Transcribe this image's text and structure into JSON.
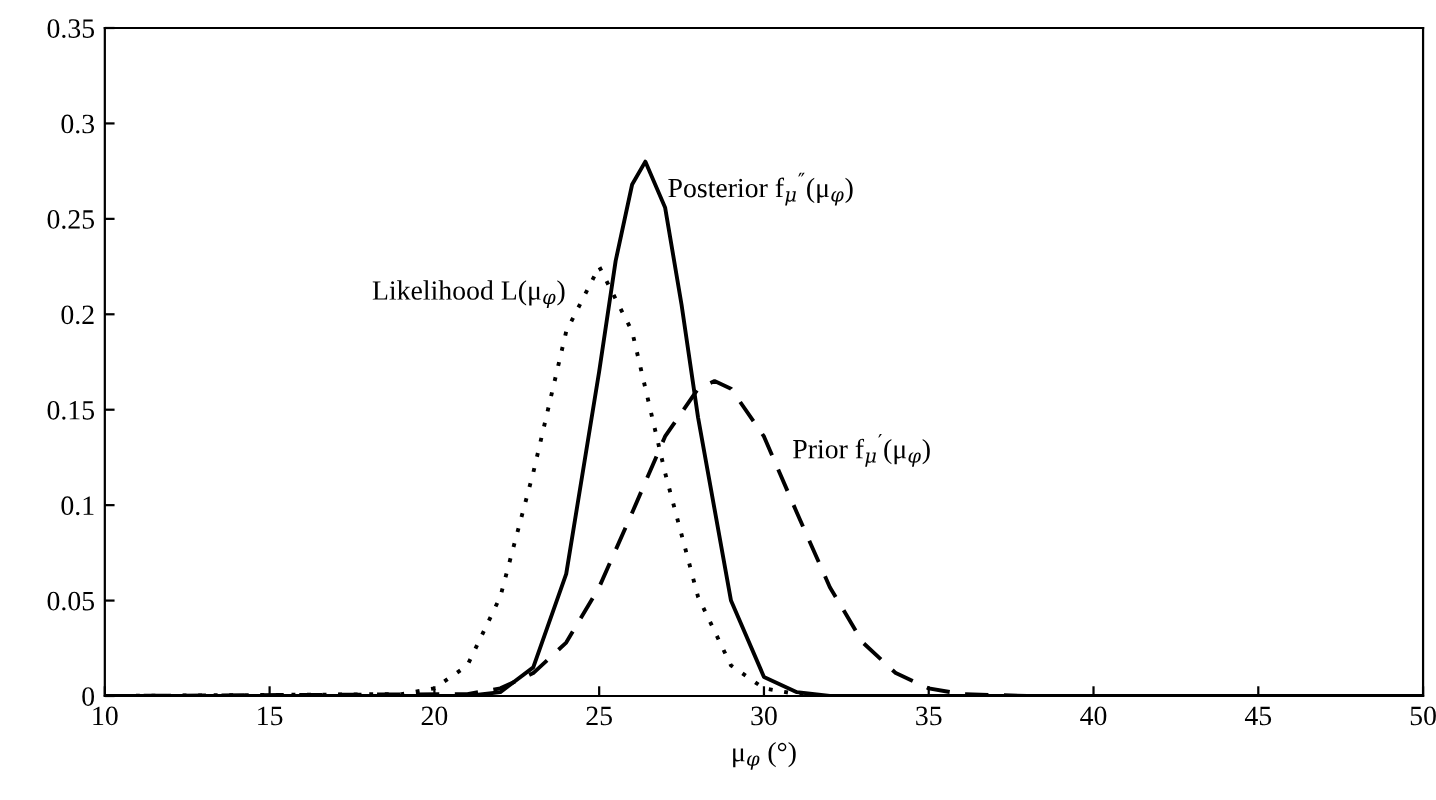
{
  "chart_data": {
    "type": "line",
    "xlabel": "μ$_{φ}$ (°)",
    "xlim": [
      10,
      50
    ],
    "xticks": [
      10,
      15,
      20,
      25,
      30,
      35,
      40,
      45,
      50
    ],
    "ylim": [
      0,
      0.35
    ],
    "yticks": [
      0,
      0.05,
      0.1,
      0.15,
      0.2,
      0.25,
      0.3,
      0.35
    ],
    "grid": false,
    "legend": false,
    "marker": "none",
    "series": [
      {
        "name": "Posterior f$_{μ}$$^{″}$(μ$_{φ}$)",
        "color": "#000000",
        "line_style": "solid",
        "x": [
          10,
          21,
          22,
          23,
          24,
          25,
          25.5,
          26,
          26.4,
          27,
          27.5,
          28,
          29,
          30,
          31,
          32,
          50
        ],
        "values": [
          0,
          0,
          0.002,
          0.015,
          0.064,
          0.17,
          0.228,
          0.268,
          0.28,
          0.256,
          0.205,
          0.146,
          0.05,
          0.01,
          0.002,
          0,
          0
        ]
      },
      {
        "name": "Likelihood L(μ$_{φ}$)",
        "color": "#000000",
        "line_style": "dotted",
        "x": [
          10,
          19,
          20,
          21,
          22,
          23,
          24,
          25,
          26,
          27,
          28,
          29,
          30,
          31,
          32,
          50
        ],
        "values": [
          0,
          0.001,
          0.004,
          0.016,
          0.052,
          0.117,
          0.191,
          0.225,
          0.191,
          0.117,
          0.052,
          0.016,
          0.004,
          0.001,
          0,
          0
        ]
      },
      {
        "name": "Prior f$_{μ}$$^{′}$(μ$_{φ}$)",
        "color": "#000000",
        "line_style": "dashed",
        "x": [
          10,
          21,
          22,
          23,
          24,
          25,
          26,
          27,
          28,
          28.5,
          29,
          30,
          31,
          32,
          33,
          34,
          35,
          36,
          38,
          50
        ],
        "values": [
          0,
          0.001,
          0.004,
          0.012,
          0.028,
          0.057,
          0.096,
          0.136,
          0.161,
          0.165,
          0.161,
          0.136,
          0.096,
          0.057,
          0.028,
          0.012,
          0.004,
          0.001,
          0,
          0
        ]
      }
    ]
  }
}
